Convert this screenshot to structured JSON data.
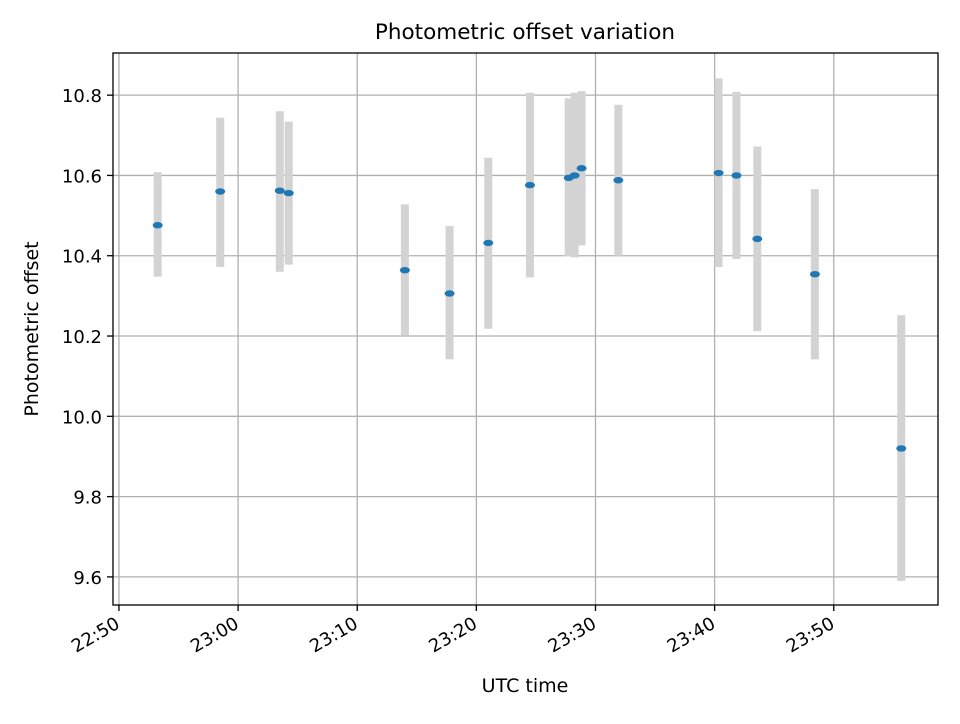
{
  "chart_data": {
    "type": "scatter",
    "title": "Photometric offset variation",
    "xlabel": "UTC time",
    "ylabel": "Photometric offset",
    "x_scale": "time",
    "xlim": [
      "22:49:30",
      "23:58:45"
    ],
    "ylim": [
      9.53,
      10.905
    ],
    "x_ticks": [
      "22:50",
      "23:00",
      "23:10",
      "23:20",
      "23:30",
      "23:40",
      "23:50"
    ],
    "y_ticks": [
      9.6,
      9.8,
      10.0,
      10.2,
      10.4,
      10.6,
      10.8
    ],
    "y_tick_labels": [
      "9.6",
      "9.8",
      "10.0",
      "10.2",
      "10.4",
      "10.6",
      "10.8"
    ],
    "grid": true,
    "legend": "none",
    "marker_color": "#1f77b4",
    "errorbar_color": "#d3d3d3",
    "points": [
      {
        "x": "22:53:15",
        "y": 10.476,
        "err_low": 10.348,
        "err_high": 10.608
      },
      {
        "x": "22:58:30",
        "y": 10.56,
        "err_low": 10.372,
        "err_high": 10.744
      },
      {
        "x": "23:03:30",
        "y": 10.562,
        "err_low": 10.36,
        "err_high": 10.76
      },
      {
        "x": "23:04:15",
        "y": 10.556,
        "err_low": 10.378,
        "err_high": 10.734
      },
      {
        "x": "23:14:00",
        "y": 10.364,
        "err_low": 10.202,
        "err_high": 10.528
      },
      {
        "x": "23:17:45",
        "y": 10.306,
        "err_low": 10.142,
        "err_high": 10.474
      },
      {
        "x": "23:21:00",
        "y": 10.432,
        "err_low": 10.218,
        "err_high": 10.644
      },
      {
        "x": "23:24:30",
        "y": 10.576,
        "err_low": 10.346,
        "err_high": 10.806
      },
      {
        "x": "23:27:45",
        "y": 10.594,
        "err_low": 10.398,
        "err_high": 10.792
      },
      {
        "x": "23:28:15",
        "y": 10.6,
        "err_low": 10.396,
        "err_high": 10.806
      },
      {
        "x": "23:28:50",
        "y": 10.618,
        "err_low": 10.426,
        "err_high": 10.81
      },
      {
        "x": "23:31:55",
        "y": 10.588,
        "err_low": 10.4,
        "err_high": 10.776
      },
      {
        "x": "23:40:20",
        "y": 10.606,
        "err_low": 10.372,
        "err_high": 10.842
      },
      {
        "x": "23:41:50",
        "y": 10.6,
        "err_low": 10.392,
        "err_high": 10.808
      },
      {
        "x": "23:43:35",
        "y": 10.442,
        "err_low": 10.212,
        "err_high": 10.672
      },
      {
        "x": "23:48:25",
        "y": 10.354,
        "err_low": 10.142,
        "err_high": 10.566
      },
      {
        "x": "23:55:40",
        "y": 9.92,
        "err_low": 9.59,
        "err_high": 10.252
      }
    ]
  }
}
